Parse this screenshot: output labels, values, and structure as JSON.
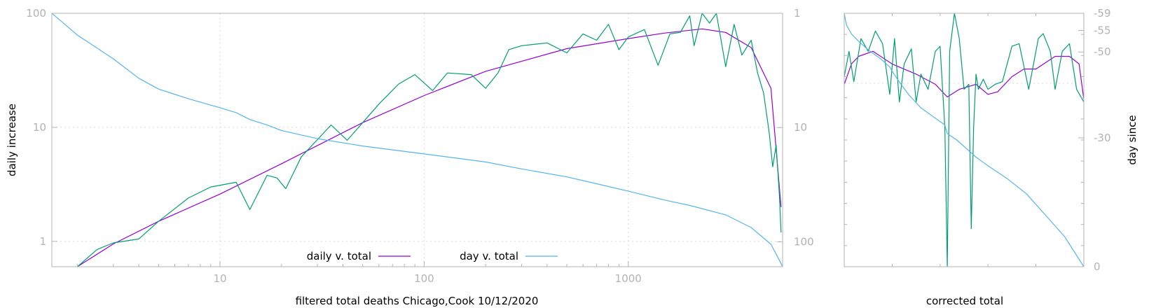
{
  "chart_data": [
    {
      "type": "line",
      "xlabel": "filtered total deaths Chicago,Cook 10/12/2020",
      "ylabel": "daily increase",
      "y2label": "",
      "x_scale": "log",
      "y_scale": "log",
      "y2_scale": "log-reversed",
      "xlim": [
        1.5,
        5700
      ],
      "ylim": [
        0.6,
        100
      ],
      "y2lim": [
        1,
        165
      ],
      "grid": true,
      "legend_position": "bottom-center",
      "x_ticks": [
        10,
        100,
        1000
      ],
      "x_tick_labels": [
        "10",
        "100",
        "1000"
      ],
      "y_ticks": [
        1,
        10,
        100
      ],
      "y_tick_labels": [
        "1",
        "10",
        "100"
      ],
      "y2_ticks": [
        1,
        10,
        100
      ],
      "y2_tick_labels": [
        "1",
        "10",
        "100"
      ],
      "series": [
        {
          "name": "daily v. total",
          "color": "#9400d3",
          "axis": "y",
          "x": [
            2,
            3,
            5,
            10,
            20,
            50,
            100,
            200,
            500,
            1000,
            1500,
            2300,
            3000,
            4000,
            5000,
            5600
          ],
          "y": [
            0.6,
            0.95,
            1.5,
            2.6,
            4.8,
            11,
            19,
            31,
            49,
            60,
            67,
            73,
            68,
            50,
            22,
            2
          ]
        },
        {
          "name": "",
          "color": "#009e73",
          "axis": "y",
          "x": [
            2,
            2.5,
            3,
            4,
            5,
            7,
            9,
            12,
            14,
            17,
            19,
            21,
            25,
            35,
            42,
            50,
            60,
            75,
            90,
            110,
            130,
            170,
            200,
            230,
            260,
            300,
            400,
            500,
            600,
            700,
            800,
            900,
            1000,
            1200,
            1400,
            1600,
            1800,
            2000,
            2100,
            2300,
            2500,
            2700,
            3000,
            3300,
            3600,
            4000,
            4300,
            4600,
            4900,
            5100,
            5300,
            5500,
            5600
          ],
          "y": [
            0.6,
            0.85,
            0.97,
            1.05,
            1.5,
            2.4,
            3.0,
            3.3,
            1.9,
            3.8,
            3.6,
            2.9,
            5.5,
            10.5,
            7.7,
            11,
            16,
            24,
            29,
            21,
            30,
            29,
            22,
            30,
            48,
            52,
            55,
            45,
            66,
            58,
            80,
            48,
            62,
            72,
            35,
            66,
            68,
            95,
            52,
            100,
            82,
            100,
            34,
            80,
            43,
            58,
            30,
            20,
            9,
            4.5,
            7,
            2.5,
            1.2
          ]
        },
        {
          "name": "day v. total",
          "color": "#56b4e9",
          "axis": "y2",
          "x": [
            1.5,
            2,
            3,
            4,
            5,
            7,
            10,
            12,
            14,
            17,
            20,
            30,
            50,
            100,
            200,
            300,
            500,
            700,
            1000,
            1500,
            2000,
            3000,
            4000,
            5000,
            5500,
            5700
          ],
          "y2": [
            1,
            1.55,
            2.5,
            3.7,
            4.6,
            5.6,
            6.7,
            7.4,
            8.5,
            9.5,
            10.6,
            12.5,
            14.5,
            17,
            20,
            23,
            27,
            31,
            36,
            43,
            48,
            58,
            75,
            105,
            145,
            165
          ]
        }
      ]
    },
    {
      "type": "line",
      "xlabel": "corrected total",
      "ylabel": "",
      "y2label": "day since",
      "xlim": [
        0,
        1
      ],
      "ylim": [
        0,
        1
      ],
      "y2lim": [
        -59,
        0
      ],
      "y2_ticks": [
        -59,
        -55,
        -50,
        -30,
        0
      ],
      "y2_tick_labels": [
        "-59",
        "-55",
        "-50",
        "-30",
        "0"
      ],
      "grid": false,
      "series": [
        {
          "name": "",
          "color": "#9400d3",
          "axis": "y",
          "x": [
            0,
            0.03,
            0.06,
            0.12,
            0.2,
            0.3,
            0.38,
            0.43,
            0.48,
            0.55,
            0.6,
            0.64,
            0.7,
            0.75,
            0.8,
            0.88,
            0.94,
            0.98,
            1
          ],
          "y": [
            0.72,
            0.8,
            0.83,
            0.85,
            0.8,
            0.76,
            0.72,
            0.67,
            0.7,
            0.72,
            0.68,
            0.69,
            0.75,
            0.78,
            0.78,
            0.83,
            0.83,
            0.8,
            0.66
          ]
        },
        {
          "name": "",
          "color": "#009e73",
          "axis": "y",
          "x": [
            0,
            0.02,
            0.04,
            0.07,
            0.1,
            0.13,
            0.16,
            0.19,
            0.21,
            0.23,
            0.25,
            0.28,
            0.3,
            0.32,
            0.35,
            0.38,
            0.4,
            0.42,
            0.43,
            0.44,
            0.46,
            0.48,
            0.5,
            0.52,
            0.53,
            0.54,
            0.55,
            0.56,
            0.58,
            0.6,
            0.63,
            0.66,
            0.7,
            0.73,
            0.77,
            0.79,
            0.81,
            0.83,
            0.86,
            0.88,
            0.91,
            0.94,
            0.97,
            1
          ],
          "y": [
            0.75,
            0.85,
            0.73,
            0.9,
            0.85,
            0.93,
            0.88,
            0.68,
            0.9,
            0.65,
            0.8,
            0.86,
            0.65,
            0.76,
            0.7,
            0.85,
            0.87,
            0.55,
            0.0,
            0.85,
            1.0,
            0.9,
            0.7,
            0.72,
            0.15,
            0.55,
            0.76,
            0.7,
            0.74,
            0.7,
            0.72,
            0.73,
            0.87,
            0.88,
            0.7,
            0.8,
            0.9,
            0.92,
            0.85,
            0.7,
            0.85,
            0.88,
            0.7,
            0.65
          ]
        },
        {
          "name": "",
          "color": "#56b4e9",
          "axis": "y2",
          "x": [
            0,
            0.005,
            0.01,
            0.03,
            0.06,
            0.1,
            0.15,
            0.19,
            0.2,
            0.23,
            0.27,
            0.32,
            0.37,
            0.42,
            0.43,
            0.47,
            0.5,
            0.55,
            0.6,
            0.68,
            0.76,
            0.84,
            0.92,
            1
          ],
          "y2": [
            -59,
            -57.5,
            -56.2,
            -54.2,
            -52.5,
            -50.5,
            -48.5,
            -46.5,
            -45.5,
            -43,
            -40,
            -37,
            -35,
            -33,
            -31,
            -29.5,
            -28,
            -25.5,
            -23.5,
            -20.5,
            -17,
            -12,
            -7,
            0
          ]
        }
      ]
    }
  ]
}
